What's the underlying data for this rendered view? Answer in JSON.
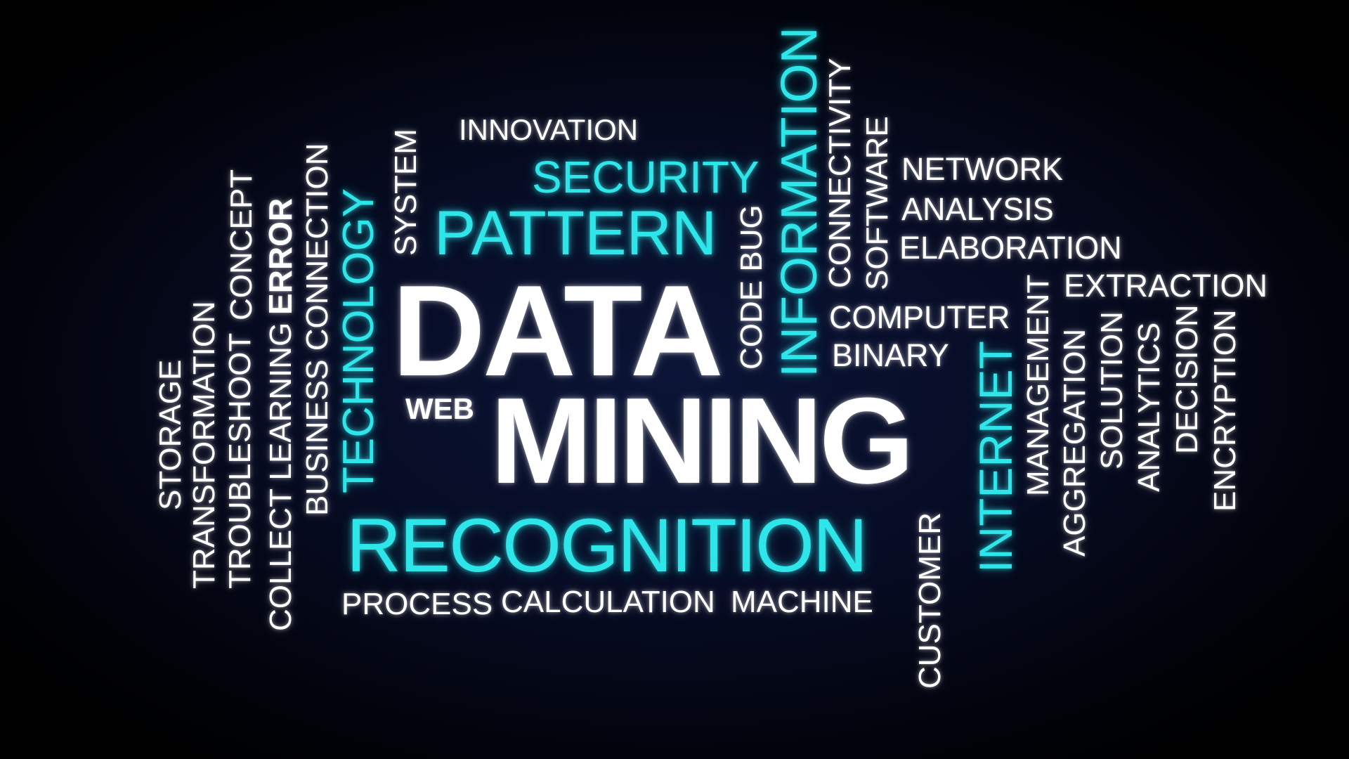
{
  "colors": {
    "background": "#070c24",
    "word_white": "#ffffff",
    "word_cyan": "#2ee6ea"
  },
  "cloud": {
    "data": "DATA",
    "mining": "MINING",
    "recognition": "RECOGNITION",
    "pattern": "PATTERN",
    "security": "SECURITY",
    "innovation": "INNOVATION",
    "information": "INFORMATION",
    "technology": "TECHNOLOGY",
    "internet": "INTERNET",
    "system": "SYSTEM",
    "business_connection": "BUSINESS CONNECTION",
    "error": "ERROR",
    "collect_learning": "COLLECT LEARNING",
    "concept": "CONCEPT",
    "troubleshoot": "TROUBLESHOOT",
    "transformation": "TRANSFORMATION",
    "storage": "STORAGE",
    "web": "WEB",
    "process": "PROCESS",
    "calculation": "CALCULATION",
    "machine": "MACHINE",
    "code_bug": "CODE BUG",
    "connectivity": "CONNECTIVITY",
    "software": "SOFTWARE",
    "network": "NETWORK",
    "analysis": "ANALYSIS",
    "elaboration": "ELABORATION",
    "extraction": "EXTRACTION",
    "computer": "COMPUTER",
    "binary": "BINARY",
    "customer": "CUSTOMER",
    "management": "MANAGEMENT",
    "aggregation": "AGGREGATION",
    "solution": "SOLUTION",
    "analytics": "ANALYTICS",
    "decision": "DECISION",
    "encryption": "ENCRYPTION"
  }
}
